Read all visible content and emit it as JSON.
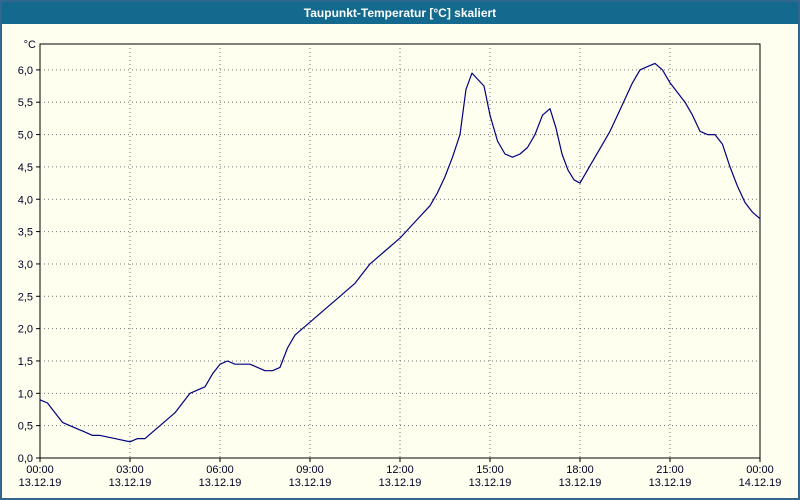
{
  "window": {
    "title": "Taupunkt-Temperatur [°C] skaliert"
  },
  "colors": {
    "frame": "#31688f",
    "title_bar_bg": "#136a8e",
    "title_text": "#ffffff",
    "page_bg": "#fffff0",
    "plot_bg": "#fffff0",
    "axis": "#000000",
    "grid": "#707070",
    "label": "#00002a",
    "line": "#000080"
  },
  "chart_data": {
    "type": "line",
    "title": "Taupunkt-Temperatur [°C] skaliert",
    "ylabel": "°C",
    "xlabel": "",
    "ylim": [
      0,
      6.4
    ],
    "ytick_step": 0.5,
    "ytick_values": [
      0,
      0.5,
      1.0,
      1.5,
      2.0,
      2.5,
      3.0,
      3.5,
      4.0,
      4.5,
      5.0,
      5.5,
      6.0
    ],
    "ytick_labels": [
      "0,0",
      "0,5",
      "1,0",
      "1,5",
      "2,0",
      "2,5",
      "3,0",
      "3,5",
      "4,0",
      "4,5",
      "5,0",
      "5,5",
      "6,0"
    ],
    "x_hours_range": [
      0,
      24
    ],
    "grid": true,
    "legend": "none",
    "xticks": [
      {
        "hour": 0,
        "time": "00:00",
        "date": "13.12.19"
      },
      {
        "hour": 3,
        "time": "03:00",
        "date": "13.12.19"
      },
      {
        "hour": 6,
        "time": "06:00",
        "date": "13.12.19"
      },
      {
        "hour": 9,
        "time": "09:00",
        "date": "13.12.19"
      },
      {
        "hour": 12,
        "time": "12:00",
        "date": "13.12.19"
      },
      {
        "hour": 15,
        "time": "15:00",
        "date": "13.12.19"
      },
      {
        "hour": 18,
        "time": "18:00",
        "date": "13.12.19"
      },
      {
        "hour": 21,
        "time": "21:00",
        "date": "13.12.19"
      },
      {
        "hour": 24,
        "time": "00:00",
        "date": "14.12.19"
      }
    ],
    "series": [
      {
        "name": "Taupunkt-Temperatur",
        "x": [
          0,
          0.25,
          0.5,
          0.75,
          1,
          1.25,
          1.5,
          1.75,
          2,
          2.5,
          3,
          3.25,
          3.5,
          3.75,
          4,
          4.25,
          4.5,
          4.75,
          5,
          5.25,
          5.5,
          5.75,
          6,
          6.25,
          6.5,
          7,
          7.25,
          7.5,
          7.75,
          8,
          8.25,
          8.5,
          8.75,
          9,
          9.5,
          10,
          10.5,
          11,
          11.5,
          12,
          12.5,
          13,
          13.25,
          13.5,
          13.75,
          14,
          14.2,
          14.4,
          14.6,
          14.8,
          15,
          15.25,
          15.5,
          15.75,
          16,
          16.25,
          16.5,
          16.75,
          17,
          17.2,
          17.4,
          17.6,
          17.8,
          18,
          18.25,
          18.5,
          18.75,
          19,
          19.25,
          19.5,
          19.75,
          20,
          20.25,
          20.5,
          20.75,
          21,
          21.25,
          21.5,
          21.75,
          22,
          22.25,
          22.5,
          22.75,
          23,
          23.25,
          23.5,
          23.75,
          24
        ],
        "values": [
          0.9,
          0.85,
          0.7,
          0.55,
          0.5,
          0.45,
          0.4,
          0.35,
          0.35,
          0.3,
          0.25,
          0.3,
          0.3,
          0.4,
          0.5,
          0.6,
          0.7,
          0.85,
          1.0,
          1.05,
          1.1,
          1.3,
          1.45,
          1.5,
          1.45,
          1.45,
          1.4,
          1.35,
          1.35,
          1.4,
          1.7,
          1.9,
          2.0,
          2.1,
          2.3,
          2.5,
          2.7,
          3.0,
          3.2,
          3.4,
          3.65,
          3.9,
          4.1,
          4.35,
          4.65,
          5.0,
          5.7,
          5.95,
          5.85,
          5.75,
          5.3,
          4.9,
          4.7,
          4.65,
          4.7,
          4.8,
          5.0,
          5.3,
          5.4,
          5.1,
          4.7,
          4.45,
          4.3,
          4.25,
          4.45,
          4.65,
          4.85,
          5.05,
          5.3,
          5.55,
          5.8,
          6.0,
          6.05,
          6.1,
          6.0,
          5.8,
          5.65,
          5.5,
          5.3,
          5.05,
          5.0,
          5.0,
          4.85,
          4.5,
          4.2,
          3.95,
          3.8,
          3.7
        ]
      }
    ]
  }
}
